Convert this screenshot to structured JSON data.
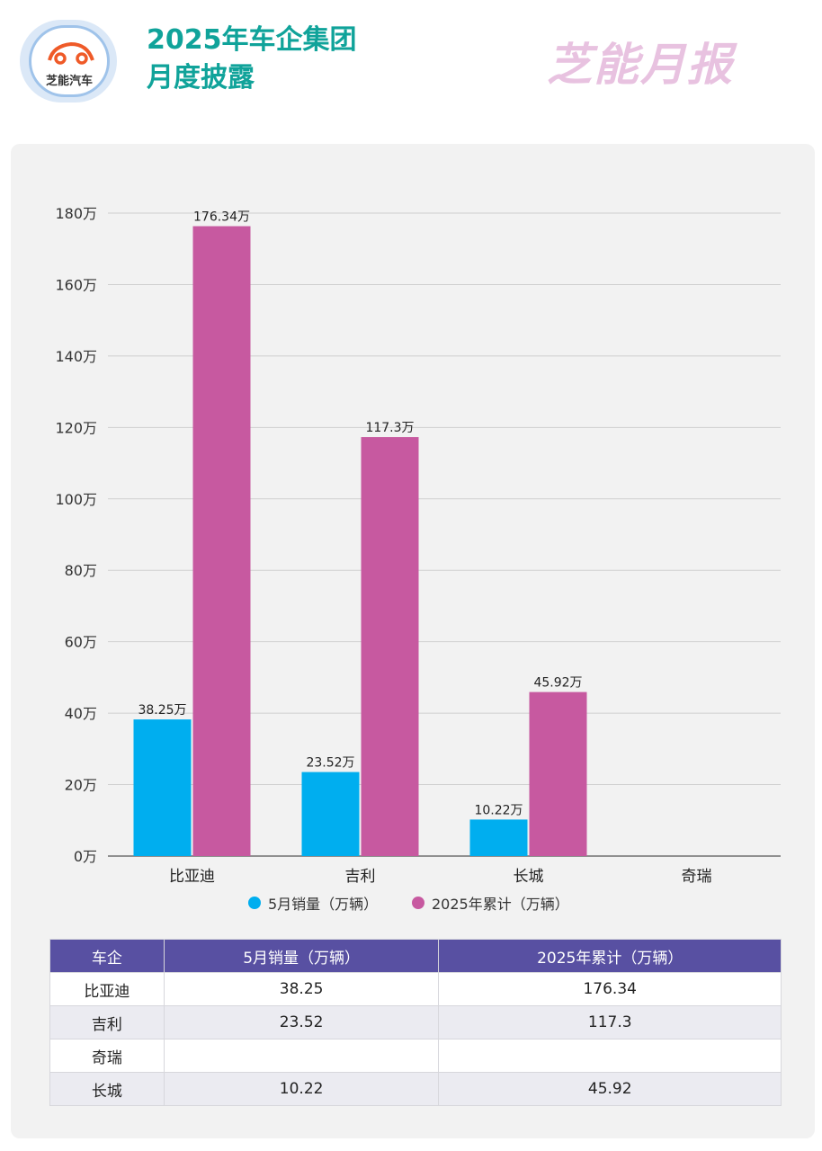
{
  "header": {
    "logo_text": "芝能汽车",
    "title_line1": "2025年车企集团",
    "title_line2": "月度披露",
    "brand": "芝能月报"
  },
  "colors": {
    "series1": "#00aeef",
    "series2": "#c759a0",
    "title": "#10a39a",
    "table_header": "#5850a2"
  },
  "chart_data": {
    "type": "bar",
    "categories": [
      "比亚迪",
      "吉利",
      "长城",
      "奇瑞"
    ],
    "series": [
      {
        "name": "5月销量（万辆）",
        "values": [
          38.25,
          23.52,
          10.22,
          null
        ],
        "labels": [
          "38.25万",
          "23.52万",
          "10.22万",
          ""
        ]
      },
      {
        "name": "2025年累计（万辆）",
        "values": [
          176.34,
          117.3,
          45.92,
          null
        ],
        "labels": [
          "176.34万",
          "117.3万",
          "45.92万",
          ""
        ]
      }
    ],
    "ylim": [
      0,
      180
    ],
    "yticks": [
      0,
      20,
      40,
      60,
      80,
      100,
      120,
      140,
      160,
      180
    ],
    "ytick_labels": [
      "0万",
      "20万",
      "40万",
      "60万",
      "80万",
      "100万",
      "120万",
      "140万",
      "160万",
      "180万"
    ],
    "grid": true,
    "legend": "bottom"
  },
  "table": {
    "headers": [
      "车企",
      "5月销量（万辆）",
      "2025年累计（万辆）"
    ],
    "rows": [
      [
        "比亚迪",
        "38.25",
        "176.34"
      ],
      [
        "吉利",
        "23.52",
        "117.3"
      ],
      [
        "奇瑞",
        "",
        ""
      ],
      [
        "长城",
        "10.22",
        "45.92"
      ]
    ]
  }
}
